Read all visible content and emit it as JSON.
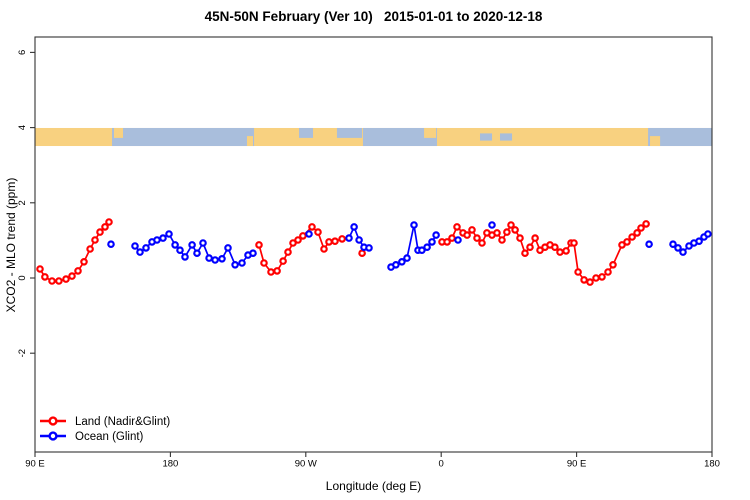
{
  "chart_data": {
    "type": "scatter",
    "title": "45N-50N February (Ver 10)   2015-01-01 to 2020-12-18",
    "xlabel": "Longitude (deg E)",
    "ylabel": "XCO2 - MLO trend (ppm)",
    "xlim": [
      90,
      540
    ],
    "ylim": [
      -4.6,
      6.4
    ],
    "grid": false,
    "legend_position": "bottom-left-inside",
    "x_axis": {
      "ticks": [
        {
          "v": 90,
          "label": "90 E"
        },
        {
          "v": 180,
          "label": "180"
        },
        {
          "v": 270,
          "label": "90 W"
        },
        {
          "v": 360,
          "label": "0"
        },
        {
          "v": 450,
          "label": "90 E"
        },
        {
          "v": 540,
          "label": "180"
        }
      ]
    },
    "y_axis": {
      "ticks": [
        {
          "v": 6,
          "label": "6"
        },
        {
          "v": 4,
          "label": "4"
        },
        {
          "v": 2,
          "label": "2"
        },
        {
          "v": 0,
          "label": "0"
        },
        {
          "v": -2,
          "label": "-2"
        }
      ]
    },
    "map_band": {
      "description": "45N-50N land/ocean strip drawn across plot",
      "top_value": 3.99,
      "bottom_value": 3.51,
      "land_color": "#F8D180",
      "ocean_color": "#A9BEDC",
      "ocean_segments": [
        [
          141.2,
          235.6
        ],
        [
          308.0,
          357.2
        ],
        [
          497.5,
          540
        ]
      ],
      "islands": [
        {
          "from": 142.5,
          "to": 148.5,
          "part": "top"
        },
        {
          "from": 230.9,
          "to": 234.9,
          "part": "bottom"
        },
        {
          "from": 348.6,
          "to": 356.6,
          "part": "top"
        },
        {
          "from": 498.8,
          "to": 505.5,
          "part": "bottom"
        }
      ],
      "lakes": [
        {
          "from": 265.5,
          "to": 274.8,
          "part": "top"
        },
        {
          "from": 290.7,
          "to": 307.4,
          "part": "top"
        },
        {
          "from": 385.8,
          "to": 393.8,
          "part": "mid"
        },
        {
          "from": 399.1,
          "to": 407.1,
          "part": "mid"
        }
      ]
    },
    "series": [
      {
        "name": "Land (Nadir&Glint)",
        "color": "#FF0000",
        "chains": [
          [
            [
              93.3,
              0.24
            ],
            [
              96.6,
              0.03
            ],
            [
              101.3,
              -0.08
            ],
            [
              105.9,
              -0.08
            ],
            [
              110.6,
              -0.03
            ],
            [
              114.6,
              0.05
            ],
            [
              118.6,
              0.19
            ],
            [
              122.6,
              0.43
            ],
            [
              126.6,
              0.77
            ],
            [
              129.9,
              1.01
            ],
            [
              133.2,
              1.22
            ],
            [
              136.5,
              1.36
            ],
            [
              139.2,
              1.49
            ]
          ],
          [
            [
              238.9,
              0.88
            ],
            [
              242.2,
              0.4
            ],
            [
              246.9,
              0.16
            ],
            [
              250.9,
              0.19
            ],
            [
              254.9,
              0.45
            ],
            [
              258.2,
              0.69
            ],
            [
              261.5,
              0.93
            ],
            [
              264.8,
              1.01
            ],
            [
              268.1,
              1.12
            ],
            [
              274.1,
              1.36
            ],
            [
              278.1,
              1.22
            ],
            [
              282.1,
              0.77
            ],
            [
              285.4,
              0.96
            ],
            [
              289.4,
              0.98
            ],
            [
              294.1,
              1.04
            ]
          ],
          [
            [
              307.4,
              0.66
            ]
          ],
          [
            [
              360.5,
              0.96
            ],
            [
              363.9,
              0.96
            ],
            [
              367.2,
              1.06
            ],
            [
              370.5,
              1.36
            ],
            [
              374.5,
              1.2
            ],
            [
              377.2,
              1.14
            ],
            [
              380.5,
              1.28
            ],
            [
              383.8,
              1.06
            ],
            [
              387.1,
              0.93
            ],
            [
              390.4,
              1.2
            ],
            [
              393.8,
              1.14
            ],
            [
              397.1,
              1.2
            ],
            [
              400.4,
              1.01
            ],
            [
              403.7,
              1.22
            ],
            [
              406.4,
              1.41
            ],
            [
              409.1,
              1.28
            ],
            [
              412.4,
              1.06
            ],
            [
              415.7,
              0.66
            ],
            [
              419.0,
              0.82
            ],
            [
              422.4,
              1.06
            ],
            [
              425.7,
              0.74
            ],
            [
              429.0,
              0.82
            ],
            [
              432.3,
              0.88
            ],
            [
              435.6,
              0.82
            ],
            [
              439.0,
              0.69
            ],
            [
              443.0,
              0.72
            ],
            [
              446.3,
              0.93
            ],
            [
              448.3,
              0.93
            ],
            [
              451.0,
              0.16
            ],
            [
              455.0,
              -0.05
            ],
            [
              458.9,
              -0.11
            ],
            [
              462.9,
              0.0
            ],
            [
              466.9,
              0.03
            ],
            [
              470.9,
              0.16
            ],
            [
              474.2,
              0.35
            ],
            [
              480.2,
              0.88
            ],
            [
              483.5,
              0.96
            ],
            [
              486.9,
              1.09
            ],
            [
              490.2,
              1.2
            ],
            [
              492.8,
              1.33
            ],
            [
              496.2,
              1.44
            ]
          ]
        ]
      },
      {
        "name": "Ocean (Glint)",
        "color": "#0000FF",
        "chains": [
          [
            [
              140.5,
              0.9
            ]
          ],
          [
            [
              156.5,
              0.85
            ],
            [
              159.8,
              0.69
            ],
            [
              163.8,
              0.8
            ],
            [
              167.8,
              0.96
            ],
            [
              171.1,
              1.01
            ],
            [
              175.1,
              1.06
            ],
            [
              179.1,
              1.17
            ],
            [
              183.1,
              0.88
            ],
            [
              186.4,
              0.74
            ],
            [
              189.7,
              0.56
            ],
            [
              194.4,
              0.88
            ],
            [
              197.7,
              0.66
            ],
            [
              201.7,
              0.93
            ],
            [
              205.7,
              0.53
            ],
            [
              209.7,
              0.48
            ],
            [
              214.3,
              0.51
            ],
            [
              218.3,
              0.8
            ],
            [
              223.0,
              0.35
            ],
            [
              227.6,
              0.4
            ],
            [
              231.6,
              0.61
            ],
            [
              234.9,
              0.66
            ]
          ],
          [
            [
              272.1,
              1.17
            ]
          ],
          [
            [
              298.7,
              1.06
            ],
            [
              302.1,
              1.36
            ],
            [
              305.4,
              1.01
            ],
            [
              308.7,
              0.82
            ],
            [
              312.0,
              0.8
            ]
          ],
          [
            [
              326.6,
              0.29
            ],
            [
              329.9,
              0.35
            ],
            [
              333.9,
              0.43
            ],
            [
              337.3,
              0.53
            ],
            [
              341.9,
              1.41
            ],
            [
              344.6,
              0.74
            ],
            [
              347.2,
              0.74
            ],
            [
              350.6,
              0.82
            ],
            [
              353.9,
              0.96
            ],
            [
              356.6,
              1.14
            ]
          ],
          [
            [
              371.2,
              1.01
            ]
          ],
          [
            [
              393.8,
              1.41
            ]
          ],
          [
            [
              498.2,
              0.9
            ]
          ],
          [
            [
              514.1,
              0.9
            ],
            [
              517.4,
              0.8
            ],
            [
              520.7,
              0.69
            ],
            [
              524.7,
              0.85
            ],
            [
              528.0,
              0.93
            ],
            [
              531.4,
              0.98
            ],
            [
              534.7,
              1.09
            ],
            [
              537.3,
              1.17
            ]
          ]
        ]
      }
    ],
    "legend": {
      "items": [
        {
          "label": "Land (Nadir&Glint)",
          "color": "#FF0000"
        },
        {
          "label": "Ocean (Glint)",
          "color": "#0000FF"
        }
      ]
    }
  }
}
